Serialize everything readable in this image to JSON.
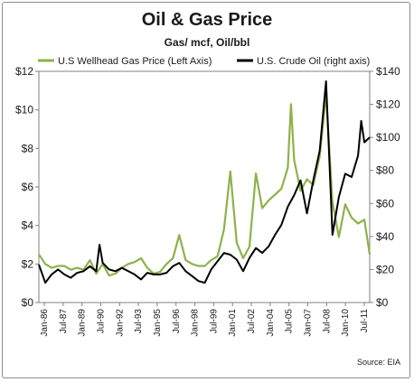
{
  "chart_data": {
    "type": "line",
    "title": "Oil & Gas Price",
    "subtitle": "Gas/ mcf, Oil/bbl",
    "source": "Source: EIA",
    "legend_position": "top",
    "grid": false,
    "x_labels": [
      "Jan-86",
      "Jul-87",
      "Jan-89",
      "Jul-90",
      "Jan-92",
      "Jul-93",
      "Jan-95",
      "Jul-96",
      "Jan-98",
      "Jul-99",
      "Jan-01",
      "Jul-02",
      "Jan-04",
      "Jul-05",
      "Jan-07",
      "Jul-08",
      "Jan-10",
      "Jul-11"
    ],
    "x_range": [
      "1986-01",
      "2011-12"
    ],
    "y_left": {
      "ticks": [
        "$0",
        "$2",
        "$4",
        "$6",
        "$8",
        "$10",
        "$12"
      ],
      "range": [
        0,
        12
      ]
    },
    "y_right": {
      "ticks": [
        "$0",
        "$20",
        "$40",
        "$60",
        "$80",
        "$100",
        "$120",
        "$140"
      ],
      "range": [
        0,
        140
      ]
    },
    "series": [
      {
        "name": "U.S Wellhead Gas Price (Left Axis)",
        "axis": "left",
        "color": "#8db24a",
        "points": [
          [
            "1986-01",
            2.5
          ],
          [
            "1986-07",
            2.0
          ],
          [
            "1987-01",
            1.8
          ],
          [
            "1987-07",
            1.9
          ],
          [
            "1988-01",
            1.9
          ],
          [
            "1988-07",
            1.7
          ],
          [
            "1989-01",
            1.8
          ],
          [
            "1989-07",
            1.7
          ],
          [
            "1990-01",
            2.2
          ],
          [
            "1990-07",
            1.5
          ],
          [
            "1991-01",
            2.0
          ],
          [
            "1991-07",
            1.4
          ],
          [
            "1992-01",
            1.5
          ],
          [
            "1992-07",
            1.8
          ],
          [
            "1993-01",
            2.0
          ],
          [
            "1993-07",
            2.1
          ],
          [
            "1994-01",
            2.3
          ],
          [
            "1994-07",
            1.8
          ],
          [
            "1995-01",
            1.5
          ],
          [
            "1995-07",
            1.6
          ],
          [
            "1996-01",
            2.0
          ],
          [
            "1996-07",
            2.3
          ],
          [
            "1997-01",
            3.5
          ],
          [
            "1997-07",
            2.2
          ],
          [
            "1998-01",
            2.0
          ],
          [
            "1998-07",
            1.9
          ],
          [
            "1999-01",
            1.9
          ],
          [
            "1999-07",
            2.2
          ],
          [
            "2000-01",
            2.4
          ],
          [
            "2000-07",
            3.8
          ],
          [
            "2001-01",
            6.8
          ],
          [
            "2001-07",
            3.1
          ],
          [
            "2002-01",
            2.3
          ],
          [
            "2002-07",
            2.9
          ],
          [
            "2003-01",
            6.7
          ],
          [
            "2003-07",
            4.9
          ],
          [
            "2004-01",
            5.3
          ],
          [
            "2004-07",
            5.6
          ],
          [
            "2005-01",
            5.9
          ],
          [
            "2005-07",
            7.0
          ],
          [
            "2005-10",
            10.3
          ],
          [
            "2006-01",
            7.4
          ],
          [
            "2006-07",
            5.8
          ],
          [
            "2007-01",
            6.4
          ],
          [
            "2007-07",
            6.1
          ],
          [
            "2008-01",
            7.6
          ],
          [
            "2008-07",
            10.8
          ],
          [
            "2009-01",
            5.2
          ],
          [
            "2009-07",
            3.4
          ],
          [
            "2010-01",
            5.1
          ],
          [
            "2010-07",
            4.4
          ],
          [
            "2011-01",
            4.1
          ],
          [
            "2011-07",
            4.3
          ],
          [
            "2011-12",
            2.5
          ]
        ]
      },
      {
        "name": "U.S. Crude Oil (right axis)",
        "axis": "right",
        "color": "#000000",
        "points": [
          [
            "1986-01",
            23
          ],
          [
            "1986-07",
            12
          ],
          [
            "1987-01",
            17
          ],
          [
            "1987-07",
            20
          ],
          [
            "1988-01",
            17
          ],
          [
            "1988-07",
            15
          ],
          [
            "1989-01",
            18
          ],
          [
            "1989-07",
            19
          ],
          [
            "1990-01",
            22
          ],
          [
            "1990-07",
            19
          ],
          [
            "1990-10",
            35
          ],
          [
            "1991-01",
            24
          ],
          [
            "1991-07",
            20
          ],
          [
            "1992-01",
            19
          ],
          [
            "1992-07",
            21
          ],
          [
            "1993-01",
            19
          ],
          [
            "1993-07",
            17
          ],
          [
            "1994-01",
            14
          ],
          [
            "1994-07",
            18
          ],
          [
            "1995-01",
            17
          ],
          [
            "1995-07",
            17
          ],
          [
            "1996-01",
            18
          ],
          [
            "1996-07",
            22
          ],
          [
            "1997-01",
            24
          ],
          [
            "1997-07",
            19
          ],
          [
            "1998-01",
            16
          ],
          [
            "1998-07",
            13
          ],
          [
            "1999-01",
            12
          ],
          [
            "1999-07",
            20
          ],
          [
            "2000-01",
            25
          ],
          [
            "2000-07",
            30
          ],
          [
            "2001-01",
            29
          ],
          [
            "2001-07",
            26
          ],
          [
            "2002-01",
            19
          ],
          [
            "2002-07",
            27
          ],
          [
            "2003-01",
            33
          ],
          [
            "2003-07",
            30
          ],
          [
            "2004-01",
            34
          ],
          [
            "2004-07",
            41
          ],
          [
            "2005-01",
            47
          ],
          [
            "2005-07",
            58
          ],
          [
            "2006-01",
            65
          ],
          [
            "2006-07",
            74
          ],
          [
            "2007-01",
            54
          ],
          [
            "2007-07",
            74
          ],
          [
            "2008-01",
            92
          ],
          [
            "2008-07",
            134
          ],
          [
            "2009-01",
            41
          ],
          [
            "2009-07",
            64
          ],
          [
            "2010-01",
            78
          ],
          [
            "2010-07",
            76
          ],
          [
            "2011-01",
            89
          ],
          [
            "2011-04",
            110
          ],
          [
            "2011-07",
            97
          ],
          [
            "2011-12",
            100
          ]
        ]
      }
    ]
  }
}
